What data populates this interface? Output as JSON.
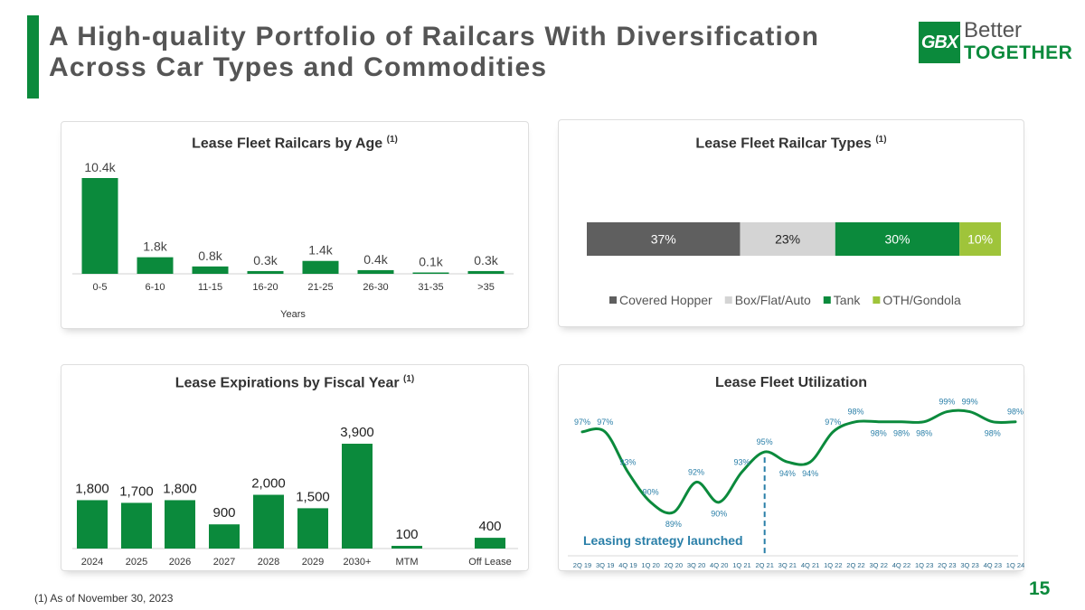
{
  "page": {
    "title_line1": "A High-quality Portfolio of Railcars With Diversification",
    "title_line2": "Across Car Types and Commodities",
    "footnote": "(1) As of November 30, 2023",
    "page_number": "15"
  },
  "logo": {
    "mark": "GBX",
    "line1": "Better",
    "line2": "TOGETHER"
  },
  "colors": {
    "green": "#0b8a3c",
    "dark_gray": "#5f5f5f",
    "light_gray": "#d4d4d4",
    "lime": "#9fc43a",
    "teal": "#2a7fa8"
  },
  "chart_data": [
    {
      "id": "age",
      "type": "bar",
      "title": "Lease Fleet Railcars by Age",
      "title_note": "(1)",
      "xlabel": "Years",
      "categories": [
        "0-5",
        "6-10",
        "11-15",
        "16-20",
        "21-25",
        "26-30",
        "31-35",
        ">35"
      ],
      "values": [
        10.4,
        1.8,
        0.8,
        0.3,
        1.4,
        0.4,
        0.1,
        0.3
      ],
      "labels": [
        "10.4k",
        "1.8k",
        "0.8k",
        "0.3k",
        "1.4k",
        "0.4k",
        "0.1k",
        "0.3k"
      ],
      "unit": "thousand railcars",
      "ylim": [
        0,
        10.4
      ]
    },
    {
      "id": "types",
      "type": "bar",
      "orientation": "stacked-horizontal",
      "title": "Lease Fleet Railcar Types",
      "title_note": "(1)",
      "categories": [
        "Covered Hopper",
        "Box/Flat/Auto",
        "Tank",
        "OTH/Gondola"
      ],
      "values": [
        37,
        23,
        30,
        10
      ],
      "labels": [
        "37%",
        "23%",
        "30%",
        "10%"
      ],
      "colors": [
        "#5f5f5f",
        "#d4d4d4",
        "#0b8a3c",
        "#9fc43a"
      ],
      "label_colors": [
        "#ffffff",
        "#222222",
        "#ffffff",
        "#ffffff"
      ],
      "legend": "bottom"
    },
    {
      "id": "expirations",
      "type": "bar",
      "title": "Lease Expirations by Fiscal Year",
      "title_note": "(1)",
      "categories": [
        "2024",
        "2025",
        "2026",
        "2027",
        "2028",
        "2029",
        "2030+",
        "MTM",
        "Off Lease"
      ],
      "values": [
        1800,
        1700,
        1800,
        900,
        2000,
        1500,
        3900,
        100,
        400
      ],
      "labels": [
        "1,800",
        "1,700",
        "1,800",
        "900",
        "2,000",
        "1,500",
        "3,900",
        "100",
        "400"
      ],
      "ylim": [
        0,
        3900
      ]
    },
    {
      "id": "utilization",
      "type": "line",
      "title": "Lease Fleet Utilization",
      "categories": [
        "2Q 19",
        "3Q 19",
        "4Q 19",
        "1Q 20",
        "2Q 20",
        "3Q 20",
        "4Q 20",
        "1Q 21",
        "2Q 21",
        "3Q 21",
        "4Q 21",
        "1Q 22",
        "2Q 22",
        "3Q 22",
        "4Q 22",
        "1Q 23",
        "2Q 23",
        "3Q 23",
        "4Q 23",
        "1Q 24"
      ],
      "values": [
        97,
        97,
        93,
        90,
        89,
        92,
        90,
        93,
        95,
        94,
        94,
        97,
        98,
        98,
        98,
        98,
        99,
        99,
        98,
        98
      ],
      "labels": [
        "97%",
        "97%",
        "93%",
        "90%",
        "89%",
        "92%",
        "90%",
        "93%",
        "95%",
        "94%",
        "94%",
        "97%",
        "98%",
        "98%",
        "98%",
        "98%",
        "99%",
        "99%",
        "98%",
        "98%"
      ],
      "ylim": [
        88,
        99.5
      ],
      "annotation": "Leasing strategy launched",
      "annotation_at": "2Q 21"
    }
  ]
}
